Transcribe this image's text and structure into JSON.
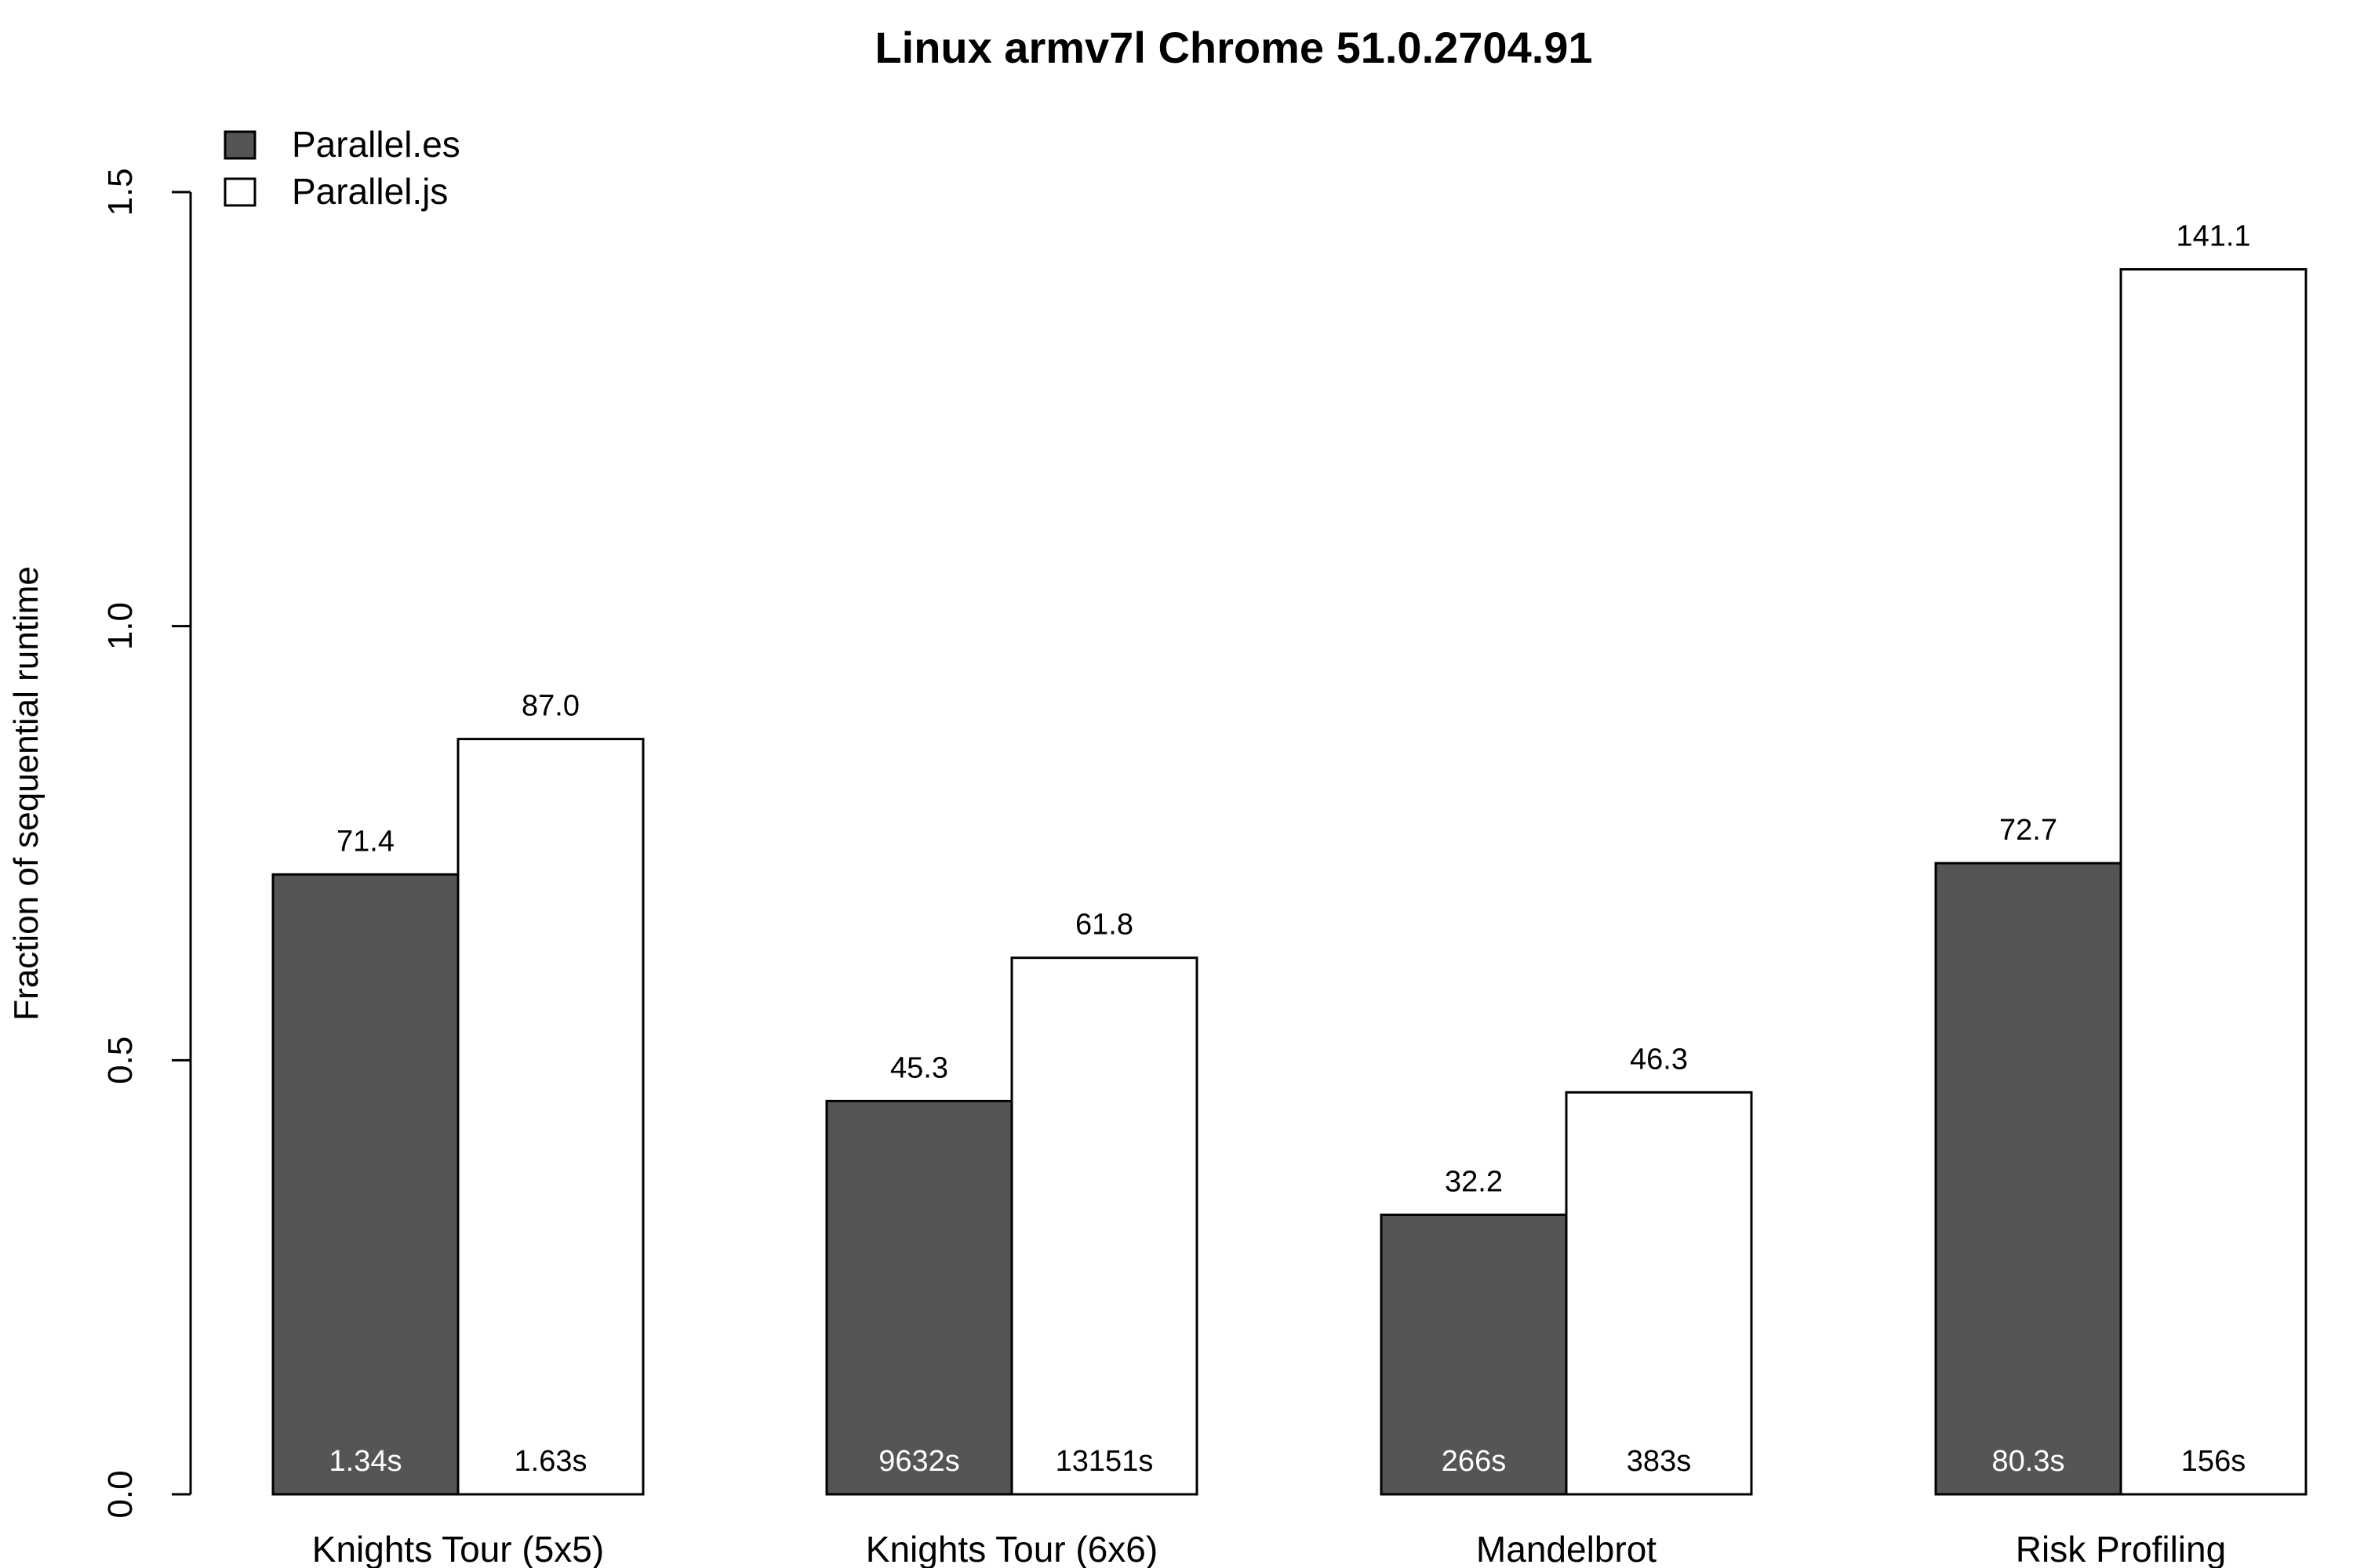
{
  "chart_data": {
    "type": "bar",
    "title": "Linux armv7l  Chrome 51.0.2704.91",
    "xlabel": "",
    "ylabel": "Fraction of sequential runtime",
    "ylim": [
      0,
      1.5
    ],
    "yticks": [
      0.0,
      0.5,
      1.0,
      1.5
    ],
    "ytick_labels": [
      "0.0",
      "0.5",
      "1.0",
      "1.5"
    ],
    "grid": false,
    "legend_position": "top-left",
    "categories": [
      "Knights Tour (5x5)",
      "Knights Tour (6x6)",
      "Mandelbrot",
      "Risk Profiling"
    ],
    "series": [
      {
        "name": "Parallel.es",
        "color": "#555555",
        "values": [
          0.714,
          0.453,
          0.322,
          0.727
        ],
        "value_labels": [
          "71.4",
          "45.3",
          "32.2",
          "72.7"
        ],
        "time_labels": [
          "1.34s",
          "9632s",
          "266s",
          "80.3s"
        ],
        "time_label_color": "#ffffff"
      },
      {
        "name": "Parallel.js",
        "color": "#ffffff",
        "values": [
          0.87,
          0.618,
          0.463,
          1.411
        ],
        "value_labels": [
          "87.0",
          "61.8",
          "46.3",
          "141.1"
        ],
        "time_labels": [
          "1.63s",
          "13151s",
          "383s",
          "156s"
        ],
        "time_label_color": "#000000"
      }
    ]
  }
}
